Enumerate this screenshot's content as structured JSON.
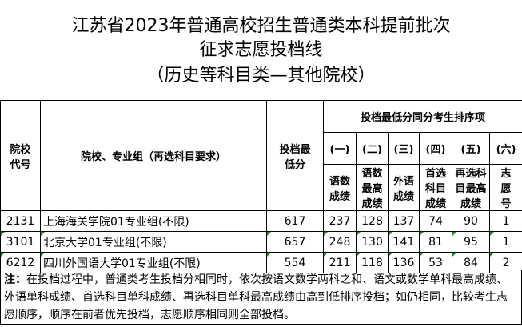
{
  "title": [
    "江苏省2023年普通高校招生普通类本科提前批次",
    "征求志愿投档线",
    "（历史等科目类—其他院校）"
  ],
  "headers": {
    "code": "院校代号",
    "name": "院校、专业组（再选科目要求）",
    "min": "投档最低分",
    "group": "投档最低分同分考生排序项",
    "nums": [
      "(一)",
      "(二)",
      "(三)",
      "(四)",
      "(五)",
      "(六)"
    ],
    "subs": [
      "语数成绩",
      "语数最高成绩",
      "外语成绩",
      "首选科目成绩",
      "再选科目最高成绩",
      "志愿号"
    ]
  },
  "rows": [
    {
      "code": "2131",
      "name": "上海海关学院01专业组(不限)",
      "min": "617",
      "v": [
        "237",
        "128",
        "137",
        "74",
        "90",
        "1"
      ]
    },
    {
      "code": "3101",
      "name": "北京大学01专业组(不限)",
      "min": "657",
      "v": [
        "248",
        "130",
        "141",
        "81",
        "95",
        "1"
      ]
    },
    {
      "code": "6212",
      "name": "四川外国语大学01专业组(不限)",
      "min": "554",
      "v": [
        "211",
        "118",
        "136",
        "53",
        "84",
        "2"
      ]
    }
  ],
  "note": {
    "label": "注：",
    "text": "在投档过程中，普通类考生投档分相同时，依次按语文数学两科之和、语文或数学单科最高成绩、外语单科成绩、首选科目单科成绩、再选科目单科最高成绩由高到低排序投档；如仍相同，比较考生志愿顺序，顺序在前者优先投档，志愿顺序相同则全部投档。"
  }
}
